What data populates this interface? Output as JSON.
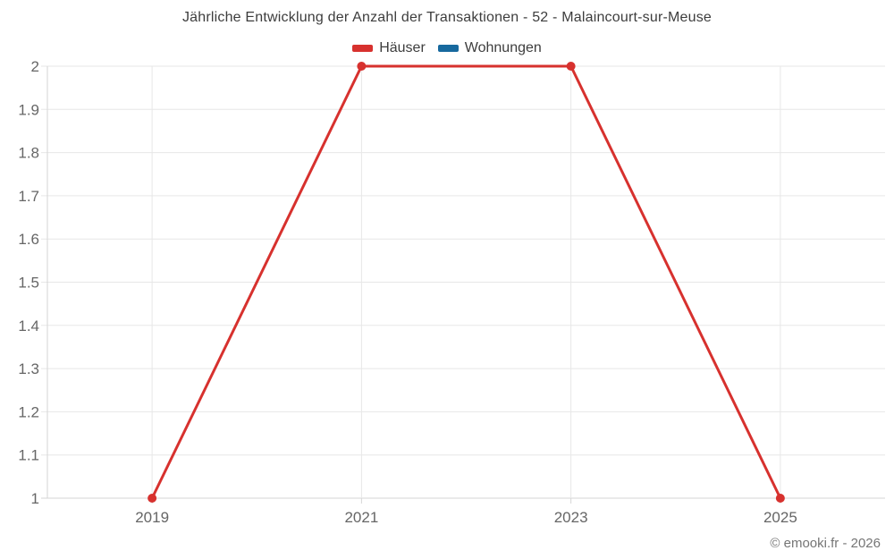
{
  "title": "Jährliche Entwicklung der Anzahl der Transaktionen - 52 - Malaincourt-sur-Meuse",
  "legend": {
    "items": [
      {
        "label": "Häuser",
        "color": "#d7312e"
      },
      {
        "label": "Wohnungen",
        "color": "#17699e"
      }
    ]
  },
  "footer": {
    "credit": "© emooki.fr - 2026"
  },
  "colors": {
    "background": "#ffffff",
    "grid": "#e7e7e7",
    "axis": "#d6d6d6",
    "axis_label": "#666666",
    "title_text": "#3d3d3d"
  },
  "chart_data": {
    "type": "line",
    "title": "Jährliche Entwicklung der Anzahl der Transaktionen - 52 - Malaincourt-sur-Meuse",
    "categories": [
      "2019",
      "2021",
      "2023",
      "2025"
    ],
    "series": [
      {
        "name": "Häuser",
        "color": "#d7312e",
        "values": [
          1,
          2,
          2,
          1
        ]
      },
      {
        "name": "Wohnungen",
        "color": "#17699e",
        "values": []
      }
    ],
    "xlabel": "",
    "ylabel": "",
    "ylim": [
      1,
      2
    ],
    "y_tick_step": 0.1,
    "y_tick_labels": [
      "1",
      "1.1",
      "1.2",
      "1.3",
      "1.4",
      "1.5",
      "1.6",
      "1.7",
      "1.8",
      "1.9",
      "2"
    ],
    "grid": true,
    "legend_position": "top",
    "point_markers": true
  }
}
